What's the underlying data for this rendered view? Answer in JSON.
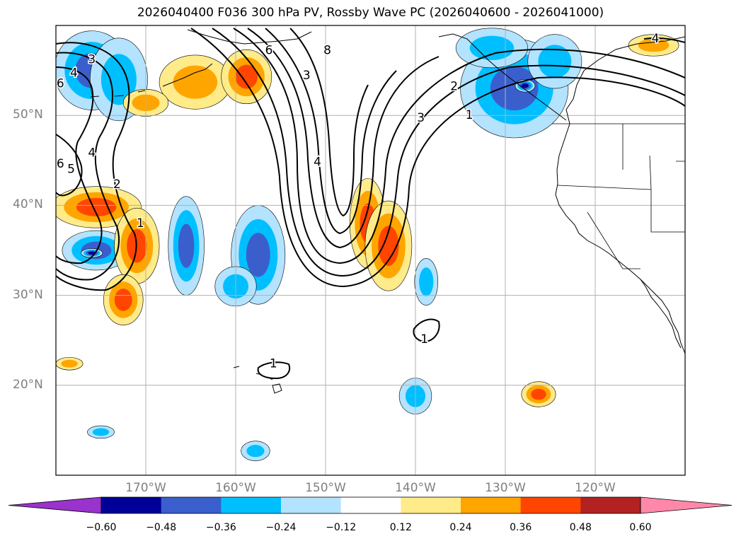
{
  "title": "2026040400 F036 300 hPa PV, Rossby Wave PC (2026040600 - 2026041000)",
  "lat_labels": [
    {
      "text": "50°N",
      "lat": 50
    },
    {
      "text": "40°N",
      "lat": 40
    },
    {
      "text": "30°N",
      "lat": 30
    },
    {
      "text": "20°N",
      "lat": 20
    }
  ],
  "lon_labels": [
    {
      "text": "170°W",
      "lon": -170
    },
    {
      "text": "160°W",
      "lon": -160
    },
    {
      "text": "150°W",
      "lon": -150
    },
    {
      "text": "140°W",
      "lon": -140
    },
    {
      "text": "130°W",
      "lon": -130
    },
    {
      "text": "120°W",
      "lon": -120
    }
  ],
  "map_extent": {
    "lon_min": -180,
    "lon_max": -110,
    "lat_min": 10,
    "lat_max": 60
  },
  "colorbar": {
    "levels": [
      "−0.60",
      "−0.48",
      "−0.36",
      "−0.24",
      "−0.12",
      "0.12",
      "0.24",
      "0.36",
      "0.48",
      "0.60"
    ],
    "colors": [
      "#9933cc",
      "#000099",
      "#3a5fcd",
      "#00bfff",
      "#b3e3ff",
      "#ffffff",
      "#ffeb8a",
      "#ffa500",
      "#ff4500",
      "#b22222",
      "#ff88aa"
    ]
  },
  "contour_labels": [
    {
      "text": "3",
      "lon": -176.0,
      "lat": 56.2
    },
    {
      "text": "4",
      "lon": -178.0,
      "lat": 54.7
    },
    {
      "text": "6",
      "lon": -179.5,
      "lat": 53.5
    },
    {
      "text": "4",
      "lon": -176.0,
      "lat": 45.8
    },
    {
      "text": "6",
      "lon": -179.5,
      "lat": 44.6
    },
    {
      "text": "5",
      "lon": -178.3,
      "lat": 44.0
    },
    {
      "text": "2",
      "lon": -173.2,
      "lat": 42.3
    },
    {
      "text": "1",
      "lon": -170.6,
      "lat": 38.0
    },
    {
      "text": "6",
      "lon": -156.3,
      "lat": 57.2
    },
    {
      "text": "8",
      "lon": -149.8,
      "lat": 57.2
    },
    {
      "text": "3",
      "lon": -152.1,
      "lat": 54.4
    },
    {
      "text": "4",
      "lon": -150.9,
      "lat": 44.8
    },
    {
      "text": "2",
      "lon": -135.7,
      "lat": 53.2
    },
    {
      "text": "3",
      "lon": -139.4,
      "lat": 49.7
    },
    {
      "text": "1",
      "lon": -134.0,
      "lat": 50.0
    },
    {
      "text": "4",
      "lon": -113.3,
      "lat": 58.5
    },
    {
      "text": "1",
      "lon": -139.0,
      "lat": 25.1
    },
    {
      "text": "1",
      "lon": -155.8,
      "lat": 22.4
    }
  ],
  "anomalies": [
    {
      "value": -0.4,
      "lon": -176.0,
      "lat": 55.0,
      "rx": 4.2,
      "ry": 4.4
    },
    {
      "value": -0.25,
      "lon": -173.0,
      "lat": 54.0,
      "rx": 3.2,
      "ry": 4.6
    },
    {
      "value": -0.4,
      "lon": -175.5,
      "lat": 35.0,
      "rx": 3.8,
      "ry": 2.2
    },
    {
      "value": -0.5,
      "lon": -176.0,
      "lat": 34.7,
      "rx": 1.2,
      "ry": 0.5
    },
    {
      "value": -0.38,
      "lon": -165.5,
      "lat": 35.5,
      "rx": 2.0,
      "ry": 5.5
    },
    {
      "value": -0.38,
      "lon": -157.5,
      "lat": 34.5,
      "rx": 3.0,
      "ry": 5.5
    },
    {
      "value": -0.28,
      "lon": -160.0,
      "lat": 31.0,
      "rx": 2.3,
      "ry": 2.2
    },
    {
      "value": -0.4,
      "lon": -129.0,
      "lat": 53.0,
      "rx": 6.0,
      "ry": 5.5
    },
    {
      "value": -0.28,
      "lon": -131.5,
      "lat": 57.5,
      "rx": 4.0,
      "ry": 2.2
    },
    {
      "value": -0.25,
      "lon": -124.5,
      "lat": 56.0,
      "rx": 3.0,
      "ry": 3.0
    },
    {
      "value": -0.52,
      "lon": -127.8,
      "lat": 53.3,
      "rx": 1.1,
      "ry": 0.7
    },
    {
      "value": -0.3,
      "lon": -138.8,
      "lat": 31.5,
      "rx": 1.3,
      "ry": 2.6
    },
    {
      "value": -0.32,
      "lon": -140.0,
      "lat": 18.8,
      "rx": 1.8,
      "ry": 2.0
    },
    {
      "value": -0.25,
      "lon": -175.0,
      "lat": 14.8,
      "rx": 1.5,
      "ry": 0.7
    },
    {
      "value": -0.25,
      "lon": -157.8,
      "lat": 12.7,
      "rx": 1.6,
      "ry": 1.1
    },
    {
      "value": 0.28,
      "lon": -164.5,
      "lat": 53.7,
      "rx": 4.0,
      "ry": 3.0
    },
    {
      "value": 0.38,
      "lon": -158.8,
      "lat": 54.3,
      "rx": 2.8,
      "ry": 3.0
    },
    {
      "value": 0.3,
      "lon": -170.0,
      "lat": 51.4,
      "rx": 2.5,
      "ry": 1.5
    },
    {
      "value": 0.45,
      "lon": -175.5,
      "lat": 39.8,
      "rx": 5.0,
      "ry": 2.3
    },
    {
      "value": 0.4,
      "lon": -171.0,
      "lat": 35.5,
      "rx": 2.5,
      "ry": 4.2
    },
    {
      "value": 0.38,
      "lon": -172.5,
      "lat": 29.5,
      "rx": 2.2,
      "ry": 2.8
    },
    {
      "value": 0.36,
      "lon": -145.3,
      "lat": 38.0,
      "rx": 2.0,
      "ry": 5.0
    },
    {
      "value": 0.42,
      "lon": -143.0,
      "lat": 35.5,
      "rx": 2.6,
      "ry": 5.0
    },
    {
      "value": 0.38,
      "lon": -126.3,
      "lat": 19.0,
      "rx": 1.9,
      "ry": 1.4
    },
    {
      "value": 0.24,
      "lon": -178.5,
      "lat": 22.4,
      "rx": 1.5,
      "ry": 0.7
    },
    {
      "value": 0.3,
      "lon": -113.5,
      "lat": 57.8,
      "rx": 2.8,
      "ry": 1.2
    }
  ]
}
